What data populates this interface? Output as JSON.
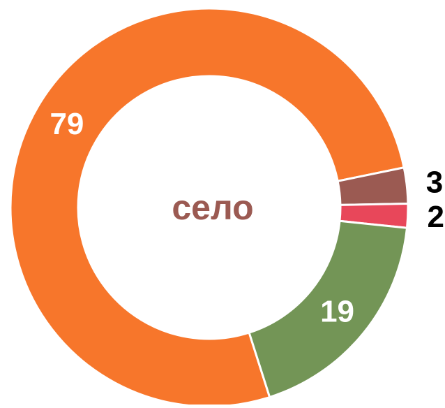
{
  "chart_data": {
    "type": "donut",
    "center_text": "село",
    "values": [
      79,
      3,
      2,
      19
    ],
    "colors": [
      "#f7762b",
      "#9b5a52",
      "#e8475a",
      "#739556"
    ],
    "label_colors": [
      "#ffffff",
      "#000000",
      "#000000",
      "#ffffff"
    ]
  }
}
